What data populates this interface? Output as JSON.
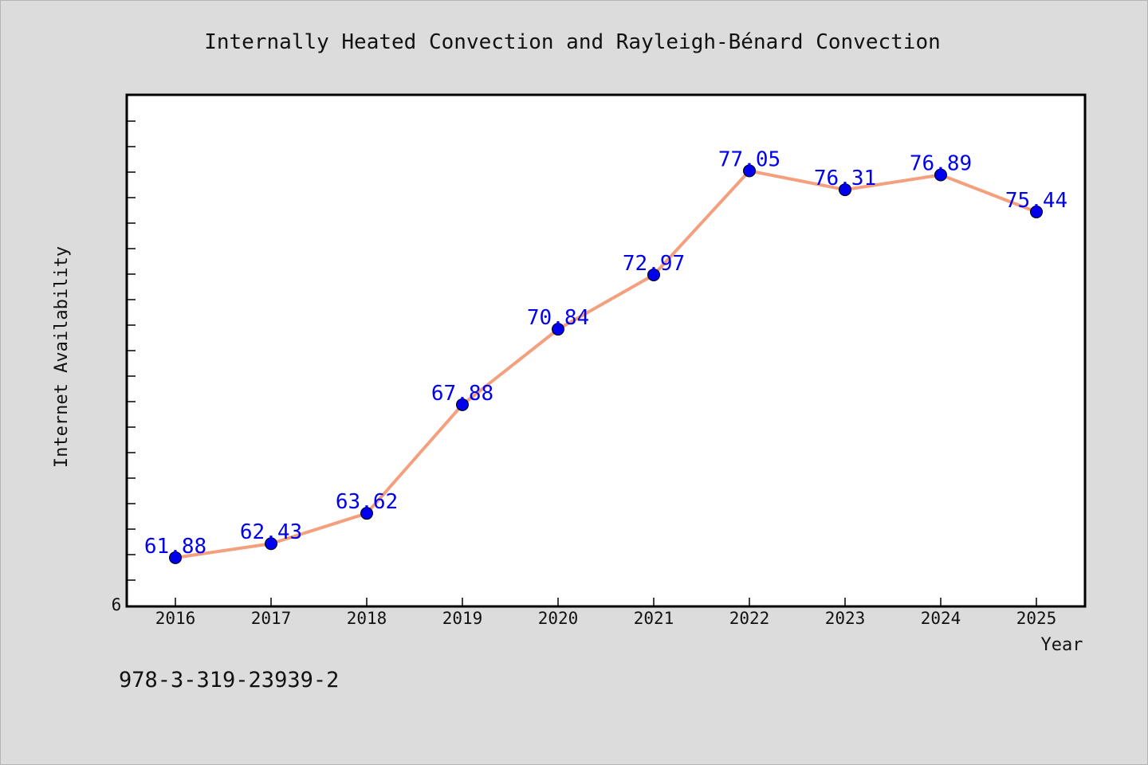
{
  "chart_data": {
    "type": "line",
    "title": "Internally Heated Convection and Rayleigh-Bénard Convection",
    "xlabel": "Year",
    "ylabel": "Internet Availability",
    "categories": [
      "2016",
      "2017",
      "2018",
      "2019",
      "2020",
      "2021",
      "2022",
      "2023",
      "2024",
      "2025"
    ],
    "series": [
      {
        "values": [
          61.88,
          62.43,
          63.62,
          67.88,
          70.84,
          72.97,
          77.05,
          76.31,
          76.89,
          75.44
        ]
      }
    ],
    "data_labels": [
      "61.88",
      "62.43",
      "63.62",
      "67.88",
      "70.84",
      "72.97",
      "77.05",
      "76.31",
      "76.89",
      "75.44"
    ],
    "y_tick_labels": [
      "6"
    ],
    "ylim": [
      60,
      80
    ],
    "grid": false,
    "legend": "none",
    "colors": {
      "line": "#f4a07e",
      "marker": "#0000ee",
      "label": "#0000ee",
      "background": "#dcdcdc",
      "plot_background": "#ffffff"
    }
  },
  "footer": {
    "id_text": "978-3-319-23939-2"
  }
}
